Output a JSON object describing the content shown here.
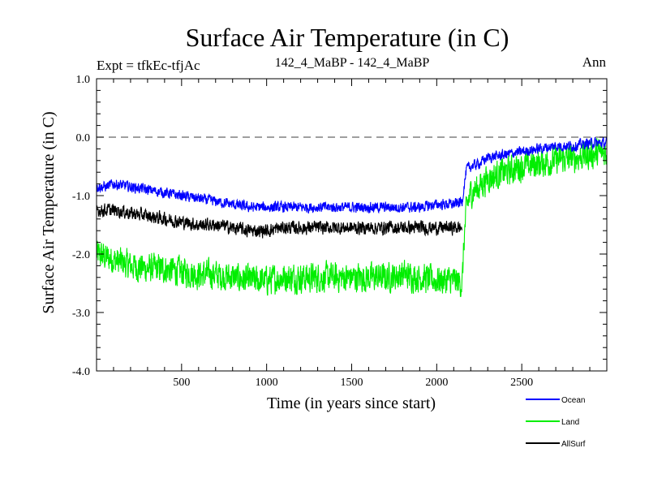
{
  "chart_data": {
    "type": "line",
    "title": "Surface Air Temperature (in C)",
    "subtitle_left": "Expt = tfkEc-tfjAc",
    "subtitle_center": "142_4_MaBP - 142_4_MaBP",
    "subtitle_right": "Ann",
    "xlabel": "Time (in years since start)",
    "ylabel": "Surface Air Temperature (in C)",
    "xlim": [
      0,
      3000
    ],
    "ylim": [
      -4.0,
      1.0
    ],
    "x_ticks": [
      {
        "value": 500,
        "label": "500"
      },
      {
        "value": 1000,
        "label": "1000"
      },
      {
        "value": 1500,
        "label": "1500"
      },
      {
        "value": 2000,
        "label": "2000"
      },
      {
        "value": 2500,
        "label": "2500"
      }
    ],
    "y_ticks": [
      {
        "value": 1.0,
        "label": "1.0"
      },
      {
        "value": 0.0,
        "label": "0.0"
      },
      {
        "value": -1.0,
        "label": "-1.0"
      },
      {
        "value": -2.0,
        "label": "-2.0"
      },
      {
        "value": -3.0,
        "label": "-3.0"
      },
      {
        "value": -4.0,
        "label": "-4.0"
      }
    ],
    "reference_line": {
      "y": 0.0,
      "style": "dashed",
      "color": "#666666"
    },
    "legend_position": "bottom-right",
    "series": [
      {
        "name": "Land",
        "color": "#00ee00",
        "noise_amplitude": 0.22,
        "x": [
          0,
          50,
          100,
          200,
          300,
          400,
          500,
          600,
          700,
          800,
          900,
          1000,
          1100,
          1200,
          1300,
          1400,
          1500,
          1600,
          1700,
          1800,
          1900,
          2000,
          2100,
          2150,
          2160,
          2175,
          2200,
          2250,
          2300,
          2400,
          2500,
          2600,
          2700,
          2800,
          2900,
          3000
        ],
        "values": [
          -2.0,
          -2.05,
          -2.1,
          -2.2,
          -2.25,
          -2.25,
          -2.3,
          -2.35,
          -2.35,
          -2.4,
          -2.45,
          -2.45,
          -2.4,
          -2.4,
          -2.4,
          -2.4,
          -2.4,
          -2.4,
          -2.4,
          -2.35,
          -2.4,
          -2.45,
          -2.45,
          -2.5,
          -1.8,
          -1.2,
          -0.95,
          -0.85,
          -0.7,
          -0.6,
          -0.5,
          -0.45,
          -0.4,
          -0.35,
          -0.3,
          -0.25
        ]
      },
      {
        "name": "Ocean",
        "color": "#0000ff",
        "noise_amplitude": 0.08,
        "x": [
          0,
          50,
          100,
          200,
          300,
          400,
          500,
          600,
          700,
          800,
          900,
          1000,
          1100,
          1200,
          1300,
          1400,
          1500,
          1600,
          1700,
          1800,
          1900,
          2000,
          2100,
          2150,
          2160,
          2175,
          2200,
          2250,
          2300,
          2400,
          2500,
          2600,
          2700,
          2800,
          2900,
          3000
        ],
        "values": [
          -0.85,
          -0.85,
          -0.8,
          -0.85,
          -0.9,
          -0.95,
          -1.0,
          -1.05,
          -1.1,
          -1.15,
          -1.2,
          -1.2,
          -1.2,
          -1.2,
          -1.2,
          -1.2,
          -1.2,
          -1.2,
          -1.2,
          -1.2,
          -1.2,
          -1.15,
          -1.15,
          -1.1,
          -0.85,
          -0.55,
          -0.5,
          -0.45,
          -0.35,
          -0.3,
          -0.25,
          -0.2,
          -0.15,
          -0.15,
          -0.1,
          -0.1
        ]
      },
      {
        "name": "AllSurf",
        "color": "#000000",
        "noise_amplitude": 0.1,
        "x": [
          0,
          50,
          100,
          200,
          300,
          400,
          500,
          600,
          700,
          800,
          900,
          1000,
          1100,
          1200,
          1300,
          1400,
          1500,
          1600,
          1700,
          1800,
          1900,
          2000,
          2100,
          2150
        ],
        "values": [
          -1.25,
          -1.25,
          -1.25,
          -1.3,
          -1.35,
          -1.4,
          -1.45,
          -1.5,
          -1.5,
          -1.55,
          -1.6,
          -1.6,
          -1.55,
          -1.55,
          -1.55,
          -1.55,
          -1.55,
          -1.55,
          -1.55,
          -1.55,
          -1.55,
          -1.55,
          -1.55,
          -1.55
        ]
      }
    ],
    "legend": [
      {
        "name": "Ocean",
        "color": "#0000ff"
      },
      {
        "name": "Land",
        "color": "#00ee00"
      },
      {
        "name": "AllSurf",
        "color": "#000000"
      }
    ]
  }
}
